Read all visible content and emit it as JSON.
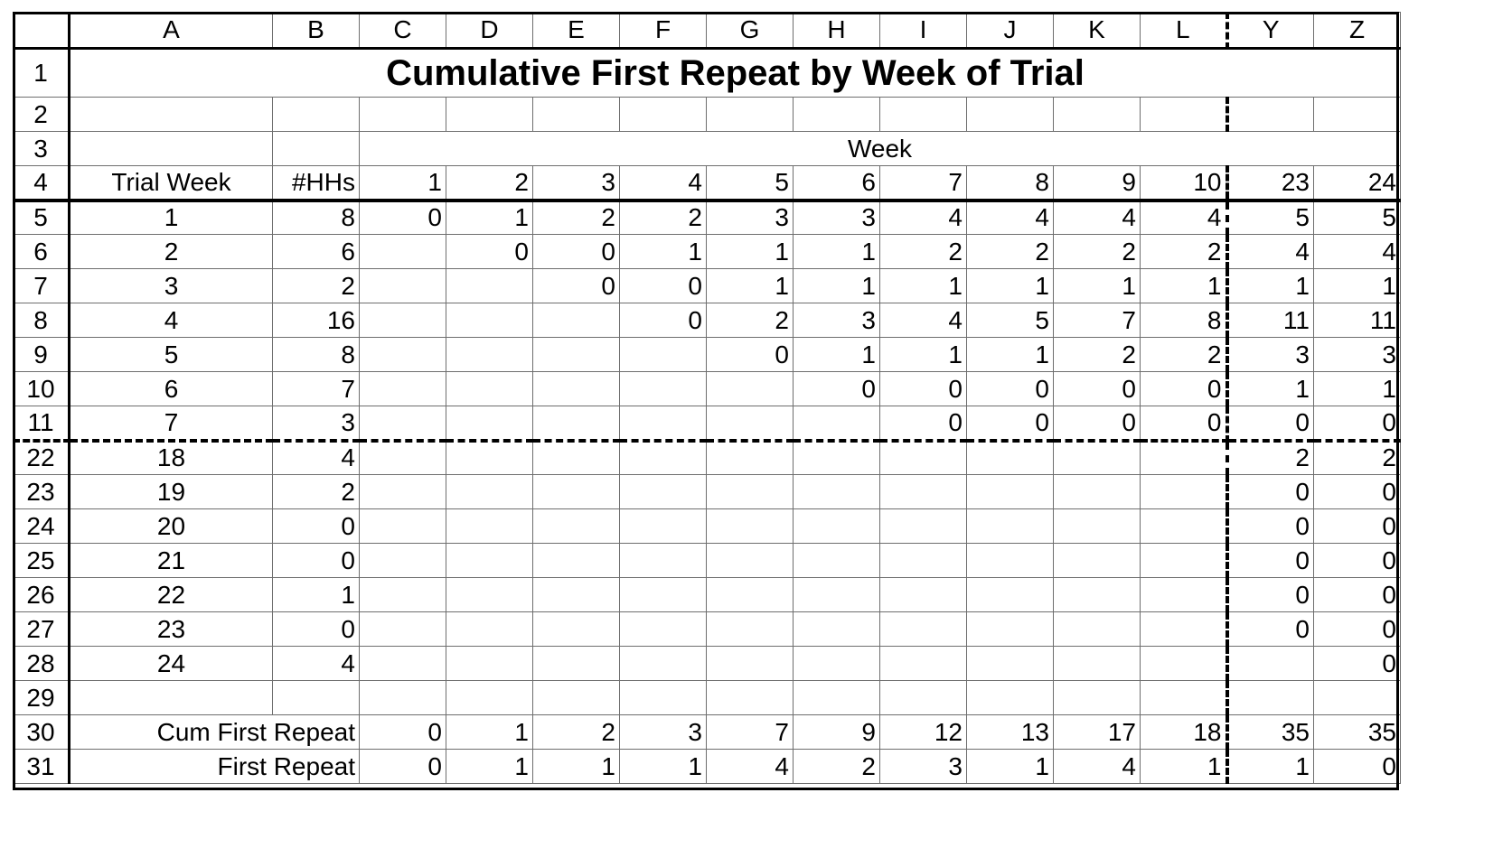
{
  "column_headers": [
    "A",
    "B",
    "C",
    "D",
    "E",
    "F",
    "G",
    "H",
    "I",
    "J",
    "K",
    "L",
    "Y",
    "Z"
  ],
  "title": "Cumulative First Repeat by Week of Trial",
  "week_label": "Week",
  "header_row": {
    "row_num": "4",
    "trial_week": "Trial Week",
    "hhs": "#HHs",
    "weeks": [
      "1",
      "2",
      "3",
      "4",
      "5",
      "6",
      "7",
      "8",
      "9",
      "10",
      "23",
      "24"
    ]
  },
  "blank_rows": [
    "2",
    "29"
  ],
  "data_rows": [
    {
      "row_num": "5",
      "trial_week": "1",
      "hhs": "8",
      "vals": [
        "0",
        "1",
        "2",
        "2",
        "3",
        "3",
        "4",
        "4",
        "4",
        "4",
        "5",
        "5"
      ]
    },
    {
      "row_num": "6",
      "trial_week": "2",
      "hhs": "6",
      "vals": [
        "",
        "0",
        "0",
        "1",
        "1",
        "1",
        "2",
        "2",
        "2",
        "2",
        "4",
        "4"
      ]
    },
    {
      "row_num": "7",
      "trial_week": "3",
      "hhs": "2",
      "vals": [
        "",
        "",
        "0",
        "0",
        "1",
        "1",
        "1",
        "1",
        "1",
        "1",
        "1",
        "1"
      ]
    },
    {
      "row_num": "8",
      "trial_week": "4",
      "hhs": "16",
      "vals": [
        "",
        "",
        "",
        "0",
        "2",
        "3",
        "4",
        "5",
        "7",
        "8",
        "11",
        "11"
      ]
    },
    {
      "row_num": "9",
      "trial_week": "5",
      "hhs": "8",
      "vals": [
        "",
        "",
        "",
        "",
        "0",
        "1",
        "1",
        "1",
        "2",
        "2",
        "3",
        "3"
      ]
    },
    {
      "row_num": "10",
      "trial_week": "6",
      "hhs": "7",
      "vals": [
        "",
        "",
        "",
        "",
        "",
        "0",
        "0",
        "0",
        "0",
        "0",
        "1",
        "1"
      ]
    },
    {
      "row_num": "11",
      "trial_week": "7",
      "hhs": "3",
      "vals": [
        "",
        "",
        "",
        "",
        "",
        "",
        "0",
        "0",
        "0",
        "0",
        "0",
        "0"
      ]
    },
    {
      "row_num": "22",
      "trial_week": "18",
      "hhs": "4",
      "vals": [
        "",
        "",
        "",
        "",
        "",
        "",
        "",
        "",
        "",
        "",
        "2",
        "2"
      ]
    },
    {
      "row_num": "23",
      "trial_week": "19",
      "hhs": "2",
      "vals": [
        "",
        "",
        "",
        "",
        "",
        "",
        "",
        "",
        "",
        "",
        "0",
        "0"
      ]
    },
    {
      "row_num": "24",
      "trial_week": "20",
      "hhs": "0",
      "vals": [
        "",
        "",
        "",
        "",
        "",
        "",
        "",
        "",
        "",
        "",
        "0",
        "0"
      ]
    },
    {
      "row_num": "25",
      "trial_week": "21",
      "hhs": "0",
      "vals": [
        "",
        "",
        "",
        "",
        "",
        "",
        "",
        "",
        "",
        "",
        "0",
        "0"
      ]
    },
    {
      "row_num": "26",
      "trial_week": "22",
      "hhs": "1",
      "vals": [
        "",
        "",
        "",
        "",
        "",
        "",
        "",
        "",
        "",
        "",
        "0",
        "0"
      ]
    },
    {
      "row_num": "27",
      "trial_week": "23",
      "hhs": "0",
      "vals": [
        "",
        "",
        "",
        "",
        "",
        "",
        "",
        "",
        "",
        "",
        "0",
        "0"
      ]
    },
    {
      "row_num": "28",
      "trial_week": "24",
      "hhs": "4",
      "vals": [
        "",
        "",
        "",
        "",
        "",
        "",
        "",
        "",
        "",
        "",
        "",
        "0"
      ]
    }
  ],
  "summary_rows": [
    {
      "row_num": "30",
      "label": "Cum First Repeat",
      "vals": [
        "0",
        "1",
        "2",
        "3",
        "7",
        "9",
        "12",
        "13",
        "17",
        "18",
        "35",
        "35"
      ]
    },
    {
      "row_num": "31",
      "label": "First Repeat",
      "vals": [
        "0",
        "1",
        "1",
        "1",
        "4",
        "2",
        "3",
        "1",
        "4",
        "1",
        "1",
        "0"
      ]
    }
  ]
}
